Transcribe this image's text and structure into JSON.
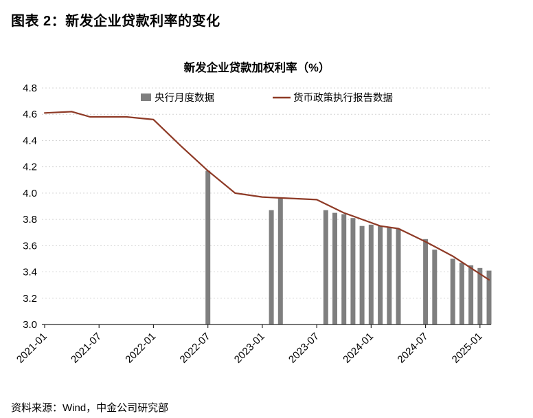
{
  "page": {
    "figure_label": "图表 2：新发企业贷款利率的变化",
    "source": "资料来源：Wind，中金公司研究部"
  },
  "chart_data": {
    "type": "bar+line",
    "title": "新发企业贷款加权利率（%）",
    "xlabel": "",
    "ylabel": "",
    "ylim": [
      3.0,
      4.8
    ],
    "y_ticks": [
      "4.8",
      "4.6",
      "4.4",
      "4.2",
      "4.0",
      "3.8",
      "3.6",
      "3.4",
      "3.2",
      "3.0"
    ],
    "x_ticks": [
      "2021-01",
      "2021-07",
      "2022-01",
      "2022-07",
      "2023-01",
      "2023-07",
      "2024-01",
      "2024-07",
      "2025-01"
    ],
    "x_range": [
      "2021-01",
      "2025-02"
    ],
    "grid": "dotted horizontal gridlines",
    "legend_position": "top inside",
    "legend": [
      {
        "label": "央行月度数据",
        "marker": "bar",
        "color": "#7f7f7f"
      },
      {
        "label": "货币政策执行报告数据",
        "marker": "line",
        "color": "#8e3a26"
      }
    ],
    "series": [
      {
        "name": "央行月度数据",
        "type": "bar",
        "color": "#7f7f7f",
        "points": [
          [
            "2022-07",
            4.17
          ],
          [
            "2023-02",
            3.87
          ],
          [
            "2023-03",
            3.96
          ],
          [
            "2023-08",
            3.87
          ],
          [
            "2023-09",
            3.85
          ],
          [
            "2023-10",
            3.84
          ],
          [
            "2023-11",
            3.81
          ],
          [
            "2023-12",
            3.75
          ],
          [
            "2024-01",
            3.76
          ],
          [
            "2024-02",
            3.75
          ],
          [
            "2024-03",
            3.74
          ],
          [
            "2024-04",
            3.73
          ],
          [
            "2024-07",
            3.65
          ],
          [
            "2024-08",
            3.57
          ],
          [
            "2024-10",
            3.5
          ],
          [
            "2024-11",
            3.47
          ],
          [
            "2024-12",
            3.45
          ],
          [
            "2025-01",
            3.43
          ],
          [
            "2025-02",
            3.41
          ]
        ]
      },
      {
        "name": "货币政策执行报告数据",
        "type": "line",
        "color": "#8e3a26",
        "points": [
          [
            "2021-01",
            4.61
          ],
          [
            "2021-04",
            4.62
          ],
          [
            "2021-06",
            4.58
          ],
          [
            "2021-10",
            4.58
          ],
          [
            "2022-01",
            4.56
          ],
          [
            "2022-04",
            4.36
          ],
          [
            "2022-07",
            4.17
          ],
          [
            "2022-10",
            4.0
          ],
          [
            "2023-01",
            3.97
          ],
          [
            "2023-04",
            3.96
          ],
          [
            "2023-07",
            3.95
          ],
          [
            "2023-10",
            3.85
          ],
          [
            "2023-12",
            3.8
          ],
          [
            "2024-02",
            3.75
          ],
          [
            "2024-04",
            3.73
          ],
          [
            "2024-07",
            3.63
          ],
          [
            "2024-10",
            3.52
          ],
          [
            "2024-12",
            3.43
          ],
          [
            "2025-02",
            3.34
          ]
        ]
      }
    ]
  }
}
